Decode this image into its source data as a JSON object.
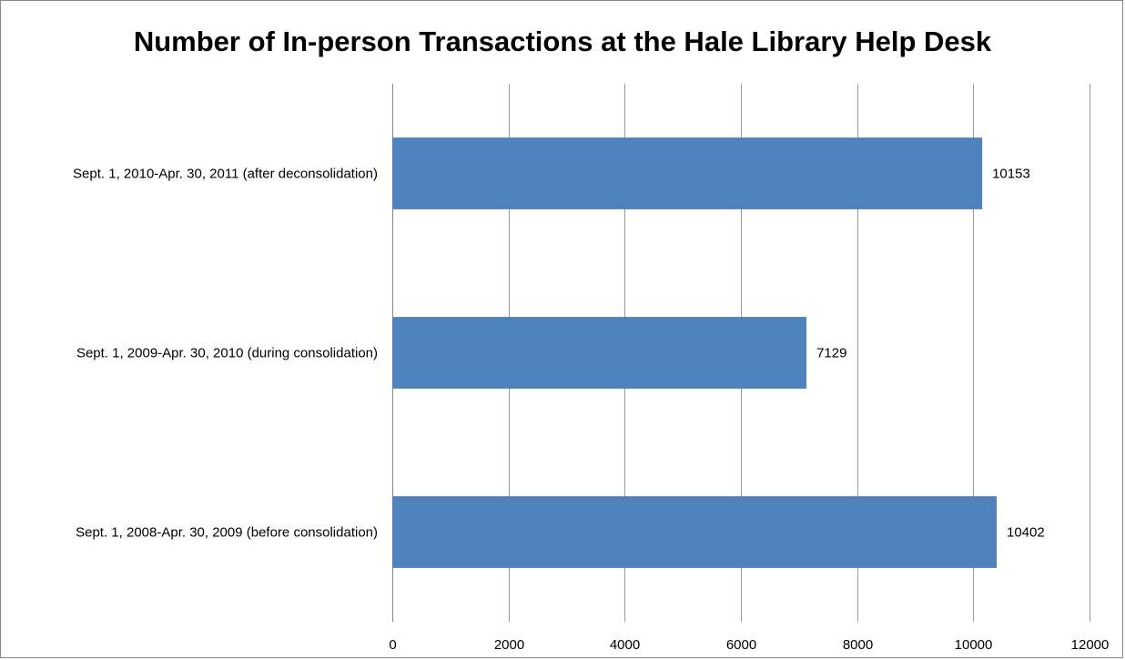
{
  "chart_data": {
    "type": "bar",
    "orientation": "horizontal",
    "title": "Number of In-person Transactions at the Hale Library Help Desk",
    "xlabel": "",
    "ylabel": "",
    "categories": [
      "Sept. 1, 2010-Apr. 30, 2011 (after deconsolidation)",
      "Sept. 1, 2009-Apr. 30, 2010 (during consolidation)",
      "Sept. 1, 2008-Apr. 30, 2009 (before consolidation)"
    ],
    "values": [
      10153,
      7129,
      10402
    ],
    "xlim": [
      0,
      12000
    ],
    "xticks": [
      0,
      2000,
      4000,
      6000,
      8000,
      10000,
      12000
    ],
    "grid": true,
    "legend": "none",
    "bar_color": "#4f81bd"
  }
}
